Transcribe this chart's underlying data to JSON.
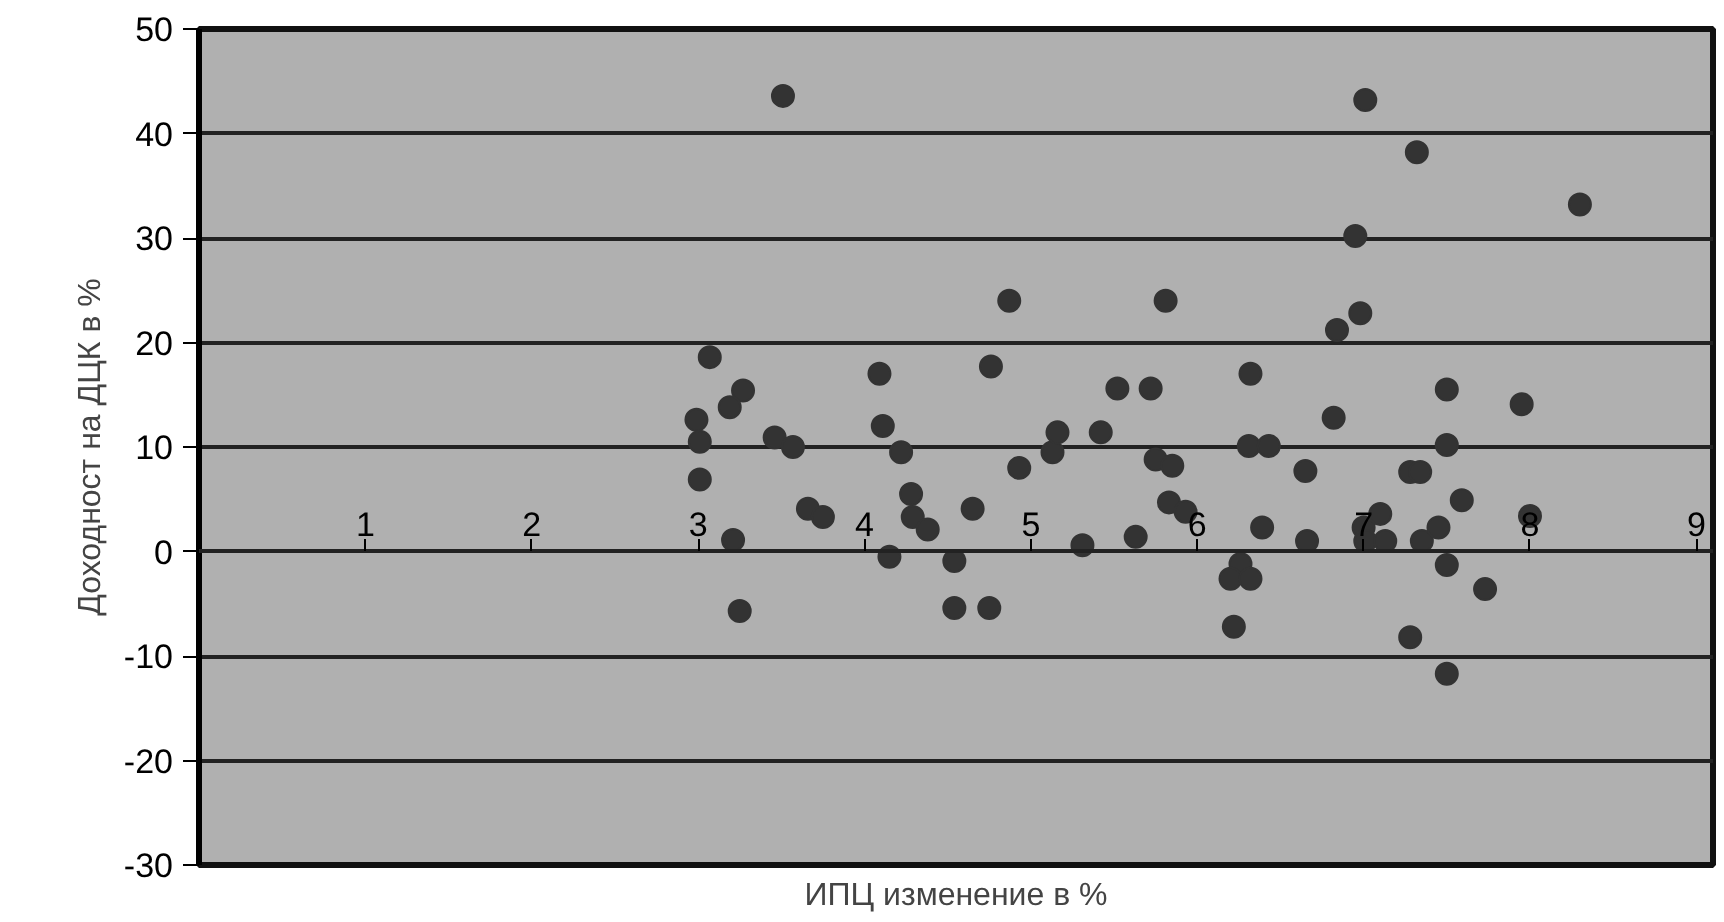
{
  "chart_data": {
    "type": "scatter",
    "xlabel": "ИПЦ изменение в %",
    "ylabel": "Доходност на ДЦК в %",
    "xlim": [
      0,
      9.1
    ],
    "ylim": [
      -30,
      50
    ],
    "xticks": [
      1,
      2,
      3,
      4,
      5,
      6,
      7,
      8,
      9
    ],
    "yticks": [
      -30,
      -20,
      -10,
      0,
      10,
      20,
      30,
      40,
      50
    ],
    "grid": "y",
    "marker": "circle",
    "series": [
      {
        "color": "#333333",
        "x": [
          3.07,
          3.27,
          3.19,
          2.99,
          3.01,
          3.01,
          3.21,
          3.25,
          3.51,
          3.46,
          3.57,
          3.66,
          3.75,
          4.09,
          4.11,
          4.22,
          4.28,
          4.29,
          4.38,
          4.15,
          4.54,
          4.65,
          4.54,
          4.75,
          4.76,
          4.87,
          4.93,
          5.13,
          5.16,
          5.31,
          5.42,
          5.52,
          5.63,
          5.72,
          5.81,
          5.75,
          5.85,
          5.83,
          5.93,
          7.01,
          7.32,
          8.3,
          6.95,
          6.98,
          6.84,
          6.32,
          7.5,
          7.95,
          6.82,
          6.31,
          6.43,
          7.5,
          6.65,
          7.28,
          7.34,
          7.59,
          6.39,
          6.66,
          7.0,
          7.1,
          7.01,
          7.13,
          7.35,
          7.45,
          7.5,
          7.73,
          6.26,
          6.2,
          6.32,
          6.22,
          7.28,
          7.5,
          8.0
        ],
        "values": [
          18.6,
          15.4,
          13.8,
          12.6,
          10.5,
          6.9,
          1.1,
          -5.7,
          43.6,
          10.9,
          10.0,
          4.1,
          3.3,
          17.0,
          12.0,
          9.5,
          5.5,
          3.3,
          2.1,
          -0.5,
          -0.9,
          4.1,
          -5.4,
          -5.4,
          17.7,
          24.0,
          8.0,
          9.5,
          11.4,
          0.6,
          11.4,
          15.6,
          1.4,
          15.6,
          24.0,
          8.8,
          8.2,
          4.7,
          3.8,
          43.2,
          38.2,
          33.2,
          30.2,
          22.8,
          21.2,
          17.0,
          15.5,
          14.1,
          12.8,
          10.1,
          10.1,
          10.2,
          7.7,
          7.6,
          7.6,
          4.9,
          2.3,
          1.0,
          2.3,
          3.6,
          1.0,
          1.0,
          1.0,
          2.3,
          -1.3,
          -3.6,
          -1.2,
          -2.6,
          -2.6,
          -7.2,
          -8.2,
          -11.7,
          3.4
        ]
      }
    ]
  }
}
